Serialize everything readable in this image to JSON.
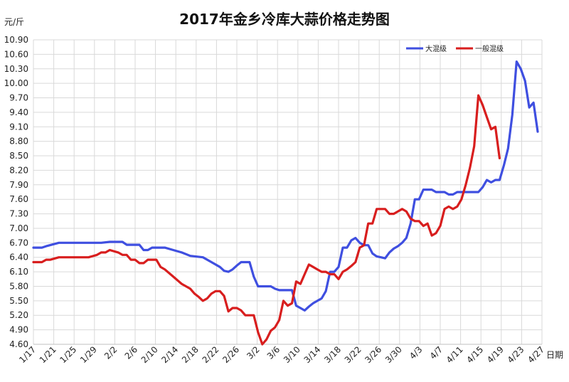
{
  "chart_data": {
    "type": "line",
    "title": "2017年金乡冷库大蒜价格走势图",
    "ylabel": "元/斤",
    "xlabel": "日期",
    "ylim": [
      4.6,
      10.9
    ],
    "yticks": [
      "4.60",
      "4.90",
      "5.20",
      "5.50",
      "5.80",
      "6.10",
      "6.40",
      "6.70",
      "7.00",
      "7.30",
      "7.60",
      "7.90",
      "8.20",
      "8.50",
      "8.80",
      "9.10",
      "9.40",
      "9.70",
      "10.00",
      "10.30",
      "10.60",
      "10.90"
    ],
    "x_tick_labels": [
      "1/17",
      "1/21",
      "1/25",
      "1/29",
      "2/2",
      "2/6",
      "2/10",
      "2/14",
      "2/18",
      "2/22",
      "2/26",
      "3/2",
      "3/6",
      "3/10",
      "3/14",
      "3/18",
      "3/22",
      "3/26",
      "3/30",
      "4/3",
      "4/7",
      "4/11",
      "4/15",
      "4/19",
      "4/23",
      "4/27"
    ],
    "grid": true,
    "legend_position": "top-right",
    "series": [
      {
        "name": "大混级",
        "color": "#3f4fe0",
        "points": [
          [
            0,
            6.6
          ],
          [
            2,
            6.6
          ],
          [
            3,
            6.63
          ],
          [
            6,
            6.7
          ],
          [
            10,
            6.7
          ],
          [
            16,
            6.7
          ],
          [
            18,
            6.72
          ],
          [
            21,
            6.72
          ],
          [
            22,
            6.66
          ],
          [
            25,
            6.66
          ],
          [
            26,
            6.55
          ],
          [
            27,
            6.55
          ],
          [
            28,
            6.6
          ],
          [
            31,
            6.6
          ],
          [
            33,
            6.55
          ],
          [
            35,
            6.5
          ],
          [
            37,
            6.43
          ],
          [
            40,
            6.4
          ],
          [
            42,
            6.3
          ],
          [
            44,
            6.2
          ],
          [
            45,
            6.12
          ],
          [
            46,
            6.1
          ],
          [
            47,
            6.15
          ],
          [
            48,
            6.23
          ],
          [
            49,
            6.3
          ],
          [
            51,
            6.3
          ],
          [
            52,
            6.0
          ],
          [
            53,
            5.8
          ],
          [
            56,
            5.8
          ],
          [
            57,
            5.75
          ],
          [
            58,
            5.72
          ],
          [
            61,
            5.72
          ],
          [
            62,
            5.4
          ],
          [
            63,
            5.35
          ],
          [
            64,
            5.3
          ],
          [
            65,
            5.38
          ],
          [
            66,
            5.45
          ],
          [
            67,
            5.5
          ],
          [
            68,
            5.55
          ],
          [
            69,
            5.7
          ],
          [
            70,
            6.1
          ],
          [
            71,
            6.1
          ],
          [
            72,
            6.2
          ],
          [
            73,
            6.6
          ],
          [
            74,
            6.6
          ],
          [
            75,
            6.75
          ],
          [
            76,
            6.8
          ],
          [
            77,
            6.7
          ],
          [
            78,
            6.65
          ],
          [
            79,
            6.65
          ],
          [
            80,
            6.48
          ],
          [
            81,
            6.42
          ],
          [
            82,
            6.4
          ],
          [
            83,
            6.38
          ],
          [
            84,
            6.5
          ],
          [
            85,
            6.58
          ],
          [
            86,
            6.63
          ],
          [
            87,
            6.7
          ],
          [
            88,
            6.8
          ],
          [
            89,
            7.1
          ],
          [
            90,
            7.6
          ],
          [
            91,
            7.6
          ],
          [
            92,
            7.8
          ],
          [
            94,
            7.8
          ],
          [
            95,
            7.75
          ],
          [
            97,
            7.75
          ],
          [
            98,
            7.7
          ],
          [
            99,
            7.7
          ],
          [
            100,
            7.75
          ],
          [
            105,
            7.75
          ],
          [
            106,
            7.85
          ],
          [
            107,
            8.0
          ],
          [
            108,
            7.95
          ],
          [
            109,
            8.0
          ],
          [
            110,
            8.0
          ],
          [
            111,
            8.3
          ],
          [
            112,
            8.65
          ],
          [
            113,
            9.35
          ],
          [
            114,
            10.45
          ],
          [
            115,
            10.3
          ],
          [
            116,
            10.05
          ],
          [
            117,
            9.5
          ],
          [
            118,
            9.6
          ],
          [
            119,
            9.0
          ]
        ]
      },
      {
        "name": "一般混级",
        "color": "#d81e1e",
        "points": [
          [
            0,
            6.3
          ],
          [
            2,
            6.3
          ],
          [
            3,
            6.35
          ],
          [
            4,
            6.35
          ],
          [
            6,
            6.4
          ],
          [
            10,
            6.4
          ],
          [
            13,
            6.4
          ],
          [
            15,
            6.45
          ],
          [
            16,
            6.5
          ],
          [
            17,
            6.5
          ],
          [
            18,
            6.55
          ],
          [
            20,
            6.5
          ],
          [
            21,
            6.45
          ],
          [
            22,
            6.45
          ],
          [
            23,
            6.35
          ],
          [
            24,
            6.35
          ],
          [
            25,
            6.28
          ],
          [
            26,
            6.28
          ],
          [
            27,
            6.35
          ],
          [
            28,
            6.35
          ],
          [
            29,
            6.35
          ],
          [
            30,
            6.2
          ],
          [
            31,
            6.15
          ],
          [
            33,
            6.0
          ],
          [
            35,
            5.85
          ],
          [
            37,
            5.75
          ],
          [
            38,
            5.65
          ],
          [
            39,
            5.58
          ],
          [
            40,
            5.5
          ],
          [
            41,
            5.55
          ],
          [
            42,
            5.65
          ],
          [
            43,
            5.7
          ],
          [
            44,
            5.7
          ],
          [
            45,
            5.6
          ],
          [
            46,
            5.28
          ],
          [
            47,
            5.35
          ],
          [
            48,
            5.35
          ],
          [
            49,
            5.3
          ],
          [
            50,
            5.2
          ],
          [
            51,
            5.2
          ],
          [
            52,
            5.2
          ],
          [
            53,
            4.85
          ],
          [
            54,
            4.6
          ],
          [
            55,
            4.7
          ],
          [
            56,
            4.88
          ],
          [
            57,
            4.95
          ],
          [
            58,
            5.1
          ],
          [
            59,
            5.5
          ],
          [
            60,
            5.4
          ],
          [
            61,
            5.45
          ],
          [
            62,
            5.9
          ],
          [
            63,
            5.85
          ],
          [
            64,
            6.05
          ],
          [
            65,
            6.25
          ],
          [
            66,
            6.2
          ],
          [
            67,
            6.15
          ],
          [
            68,
            6.1
          ],
          [
            69,
            6.1
          ],
          [
            70,
            6.05
          ],
          [
            71,
            6.05
          ],
          [
            72,
            5.95
          ],
          [
            73,
            6.1
          ],
          [
            74,
            6.15
          ],
          [
            75,
            6.22
          ],
          [
            76,
            6.3
          ],
          [
            77,
            6.6
          ],
          [
            78,
            6.65
          ],
          [
            79,
            7.1
          ],
          [
            80,
            7.1
          ],
          [
            81,
            7.4
          ],
          [
            83,
            7.4
          ],
          [
            84,
            7.3
          ],
          [
            85,
            7.3
          ],
          [
            86,
            7.35
          ],
          [
            87,
            7.4
          ],
          [
            88,
            7.35
          ],
          [
            89,
            7.2
          ],
          [
            90,
            7.15
          ],
          [
            91,
            7.15
          ],
          [
            92,
            7.05
          ],
          [
            93,
            7.1
          ],
          [
            94,
            6.85
          ],
          [
            95,
            6.9
          ],
          [
            96,
            7.05
          ],
          [
            97,
            7.4
          ],
          [
            98,
            7.45
          ],
          [
            99,
            7.4
          ],
          [
            100,
            7.45
          ],
          [
            101,
            7.6
          ],
          [
            102,
            7.9
          ],
          [
            103,
            8.25
          ],
          [
            104,
            8.7
          ],
          [
            105,
            9.75
          ],
          [
            106,
            9.55
          ],
          [
            107,
            9.3
          ],
          [
            108,
            9.05
          ],
          [
            109,
            9.1
          ],
          [
            110,
            8.45
          ]
        ]
      }
    ]
  }
}
